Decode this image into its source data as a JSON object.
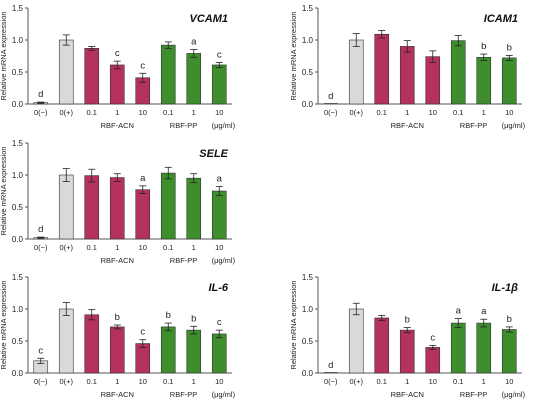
{
  "figure": {
    "ylabel": "Relative mRNA expression",
    "category_labels": [
      "0(−)",
      "0(+)",
      "0.1",
      "1",
      "10",
      "0.1",
      "1",
      "10"
    ],
    "group_labels": {
      "acn": "RBF-ACN",
      "pp": "RBF-PP",
      "unit": "(μg/ml)"
    },
    "colors": {
      "control": "#d9d9d9",
      "acn": "#b5325e",
      "pp": "#3e8e2e",
      "axis": "#555555"
    },
    "yticks": [
      "0.0",
      "0.5",
      "1.0",
      "1.5"
    ]
  },
  "chart_data": [
    {
      "type": "bar",
      "title": "VCAM1",
      "ylabel": "Relative mRNA expression",
      "ylim": [
        0,
        1.5
      ],
      "categories": [
        "0(−)",
        "0(+)",
        "0.1",
        "1",
        "10",
        "0.1",
        "1",
        "10"
      ],
      "values": [
        0.02,
        1.0,
        0.87,
        0.61,
        0.41,
        0.92,
        0.79,
        0.61
      ],
      "errors": [
        0.01,
        0.08,
        0.03,
        0.06,
        0.07,
        0.05,
        0.06,
        0.04
      ],
      "letters": [
        "d",
        "",
        "",
        "c",
        "c",
        "",
        "a",
        "c"
      ]
    },
    {
      "type": "bar",
      "title": "ICAM1",
      "ylabel": "Relative mRNA expression",
      "ylim": [
        0,
        1.5
      ],
      "categories": [
        "0(−)",
        "0(+)",
        "0.1",
        "1",
        "10",
        "0.1",
        "1",
        "10"
      ],
      "values": [
        0.0,
        1.0,
        1.09,
        0.9,
        0.74,
        0.99,
        0.73,
        0.72
      ],
      "errors": [
        0.0,
        0.1,
        0.06,
        0.09,
        0.09,
        0.08,
        0.05,
        0.04
      ],
      "letters": [
        "d",
        "",
        "",
        "",
        "",
        "",
        "b",
        "b"
      ]
    },
    {
      "type": "bar",
      "title": "SELE",
      "ylabel": "Relative mRNA expression",
      "ylim": [
        0,
        1.5
      ],
      "categories": [
        "0(−)",
        "0(+)",
        "0.1",
        "1",
        "10",
        "0.1",
        "1",
        "10"
      ],
      "values": [
        0.02,
        1.0,
        0.99,
        0.96,
        0.77,
        1.03,
        0.95,
        0.75
      ],
      "errors": [
        0.01,
        0.1,
        0.1,
        0.06,
        0.06,
        0.09,
        0.07,
        0.07
      ],
      "letters": [
        "d",
        "",
        "",
        "",
        "a",
        "",
        "",
        "a"
      ]
    },
    {
      "type": "bar",
      "title": "IL-6",
      "ylabel": "Relative mRNA expression",
      "ylim": [
        0,
        1.5
      ],
      "categories": [
        "0(−)",
        "0(+)",
        "0.1",
        "1",
        "10",
        "0.1",
        "1",
        "10"
      ],
      "values": [
        0.19,
        1.0,
        0.91,
        0.72,
        0.46,
        0.72,
        0.67,
        0.61
      ],
      "errors": [
        0.04,
        0.1,
        0.08,
        0.03,
        0.06,
        0.06,
        0.06,
        0.06
      ],
      "letters": [
        "c",
        "",
        "",
        "b",
        "c",
        "b",
        "b",
        "c"
      ]
    },
    {
      "type": "bar",
      "title": "IL-1β",
      "ylabel": "Relative mRNA expression",
      "ylim": [
        0,
        1.5
      ],
      "categories": [
        "0(−)",
        "0(+)",
        "0.1",
        "1",
        "10",
        "0.1",
        "1",
        "10"
      ],
      "values": [
        0.0,
        1.0,
        0.86,
        0.67,
        0.4,
        0.78,
        0.78,
        0.68
      ],
      "errors": [
        0.0,
        0.09,
        0.04,
        0.04,
        0.03,
        0.07,
        0.06,
        0.04
      ],
      "letters": [
        "d",
        "",
        "",
        "b",
        "c",
        "a",
        "a",
        "b"
      ]
    }
  ]
}
